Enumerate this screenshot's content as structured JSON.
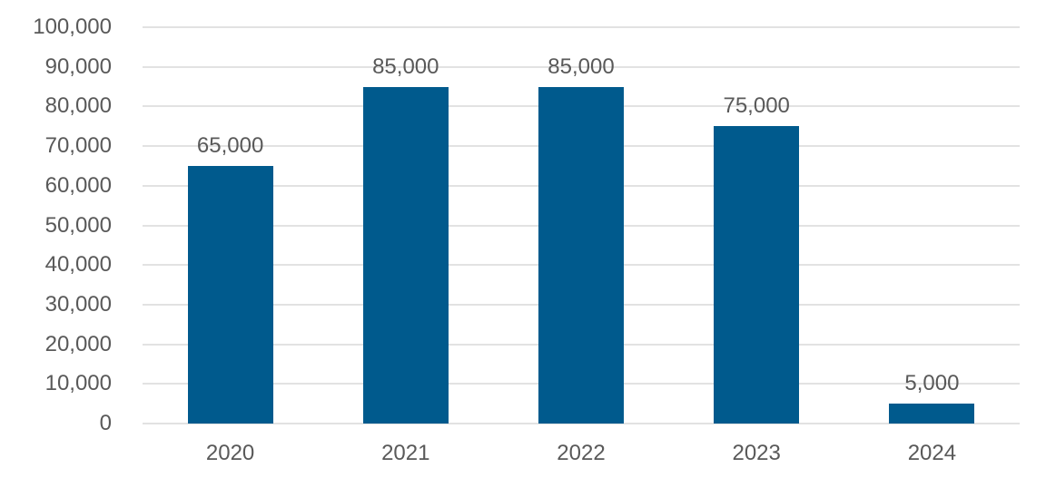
{
  "chart_data": {
    "type": "bar",
    "title": "",
    "xlabel": "",
    "ylabel": "",
    "categories": [
      "2020",
      "2021",
      "2022",
      "2023",
      "2024"
    ],
    "values": [
      65000,
      85000,
      85000,
      75000,
      5000
    ],
    "data_labels": [
      "65,000",
      "85,000",
      "85,000",
      "75,000",
      "5,000"
    ],
    "ylim": [
      0,
      100000
    ],
    "y_tick_step": 10000,
    "y_tick_labels": [
      "0",
      "10,000",
      "20,000",
      "30,000",
      "40,000",
      "50,000",
      "60,000",
      "70,000",
      "80,000",
      "90,000",
      "100,000"
    ],
    "grid": true,
    "legend": false,
    "colors": {
      "bar_fill": "#005A8D",
      "gridline": "#E2E2E2",
      "text": "#595959",
      "background": "#FFFFFF"
    }
  }
}
